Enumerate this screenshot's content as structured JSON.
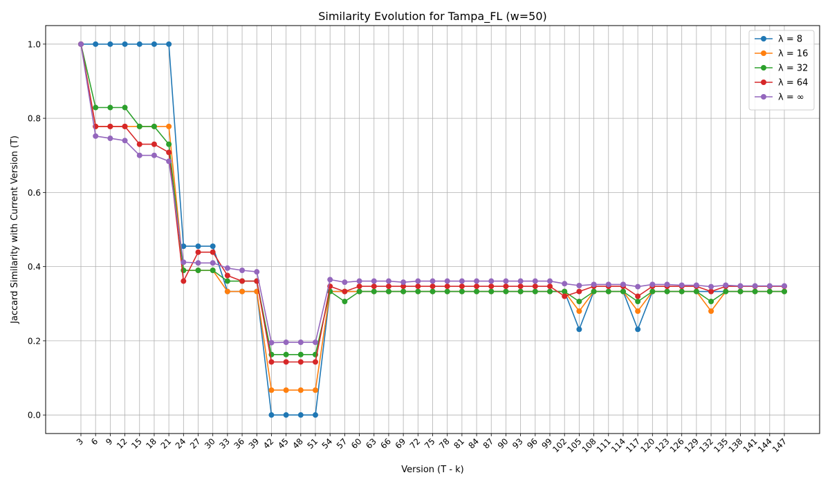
{
  "chart_data": {
    "type": "line",
    "title": "Similarity Evolution for Tampa_FL (w=50)",
    "xlabel": "Version (T - k)",
    "ylabel": "Jaccard Similarity with Current Version (T)",
    "x": [
      3,
      6,
      9,
      12,
      15,
      18,
      21,
      24,
      27,
      30,
      33,
      36,
      39,
      42,
      45,
      48,
      51,
      54,
      57,
      60,
      63,
      66,
      69,
      72,
      75,
      78,
      81,
      84,
      87,
      90,
      93,
      96,
      99,
      102,
      105,
      108,
      111,
      114,
      117,
      120,
      123,
      126,
      129,
      132,
      135,
      138,
      141,
      144,
      147
    ],
    "ylim": [
      -0.05,
      1.05
    ],
    "yticks": [
      "0.0",
      "0.2",
      "0.4",
      "0.6",
      "0.8",
      "1.0"
    ],
    "grid": true,
    "legend_position": "top-right",
    "series": [
      {
        "name": "λ = 8",
        "color": "#1f77b4",
        "values": [
          1.0,
          1.0,
          1.0,
          1.0,
          1.0,
          1.0,
          1.0,
          0.455,
          0.455,
          0.455,
          0.333,
          0.333,
          0.333,
          0.0,
          0.0,
          0.0,
          0.0,
          0.333,
          0.333,
          0.333,
          0.333,
          0.333,
          0.333,
          0.333,
          0.333,
          0.333,
          0.333,
          0.333,
          0.333,
          0.333,
          0.333,
          0.333,
          0.333,
          0.333,
          0.231,
          0.333,
          0.333,
          0.333,
          0.231,
          0.333,
          0.333,
          0.333,
          0.333,
          0.333,
          0.333,
          0.333,
          0.333,
          0.333,
          0.333
        ]
      },
      {
        "name": "λ = 16",
        "color": "#ff7f0e",
        "values": [
          1.0,
          0.778,
          0.778,
          0.778,
          0.778,
          0.778,
          0.778,
          0.39,
          0.39,
          0.39,
          0.333,
          0.333,
          0.333,
          0.067,
          0.067,
          0.067,
          0.067,
          0.333,
          0.333,
          0.333,
          0.333,
          0.333,
          0.333,
          0.333,
          0.333,
          0.333,
          0.333,
          0.333,
          0.333,
          0.333,
          0.333,
          0.333,
          0.333,
          0.333,
          0.28,
          0.333,
          0.333,
          0.333,
          0.28,
          0.333,
          0.333,
          0.333,
          0.333,
          0.28,
          0.333,
          0.333,
          0.333,
          0.333,
          0.333
        ]
      },
      {
        "name": "λ = 32",
        "color": "#2ca02c",
        "values": [
          1.0,
          0.829,
          0.829,
          0.829,
          0.778,
          0.778,
          0.73,
          0.39,
          0.39,
          0.39,
          0.361,
          0.361,
          0.361,
          0.163,
          0.163,
          0.163,
          0.163,
          0.333,
          0.306,
          0.333,
          0.333,
          0.333,
          0.333,
          0.333,
          0.333,
          0.333,
          0.333,
          0.333,
          0.333,
          0.333,
          0.333,
          0.333,
          0.333,
          0.333,
          0.306,
          0.333,
          0.333,
          0.333,
          0.306,
          0.333,
          0.333,
          0.333,
          0.333,
          0.306,
          0.333,
          0.333,
          0.333,
          0.333,
          0.333
        ]
      },
      {
        "name": "λ = 64",
        "color": "#d62728",
        "values": [
          1.0,
          0.778,
          0.778,
          0.778,
          0.73,
          0.73,
          0.708,
          0.361,
          0.439,
          0.439,
          0.376,
          0.361,
          0.361,
          0.143,
          0.143,
          0.143,
          0.143,
          0.347,
          0.333,
          0.347,
          0.347,
          0.347,
          0.347,
          0.347,
          0.347,
          0.347,
          0.347,
          0.347,
          0.347,
          0.347,
          0.347,
          0.347,
          0.347,
          0.32,
          0.333,
          0.347,
          0.347,
          0.347,
          0.32,
          0.347,
          0.347,
          0.347,
          0.347,
          0.333,
          0.347,
          0.347,
          0.347,
          0.347,
          0.347
        ]
      },
      {
        "name": "λ = ∞",
        "color": "#9467bd",
        "values": [
          1.0,
          0.752,
          0.746,
          0.74,
          0.7,
          0.7,
          0.684,
          0.412,
          0.41,
          0.41,
          0.396,
          0.39,
          0.386,
          0.195,
          0.196,
          0.196,
          0.196,
          0.365,
          0.358,
          0.361,
          0.361,
          0.361,
          0.358,
          0.361,
          0.361,
          0.361,
          0.361,
          0.361,
          0.361,
          0.361,
          0.361,
          0.361,
          0.361,
          0.354,
          0.349,
          0.352,
          0.352,
          0.352,
          0.346,
          0.352,
          0.352,
          0.35,
          0.35,
          0.346,
          0.35,
          0.348,
          0.348,
          0.348,
          0.348
        ]
      }
    ]
  }
}
